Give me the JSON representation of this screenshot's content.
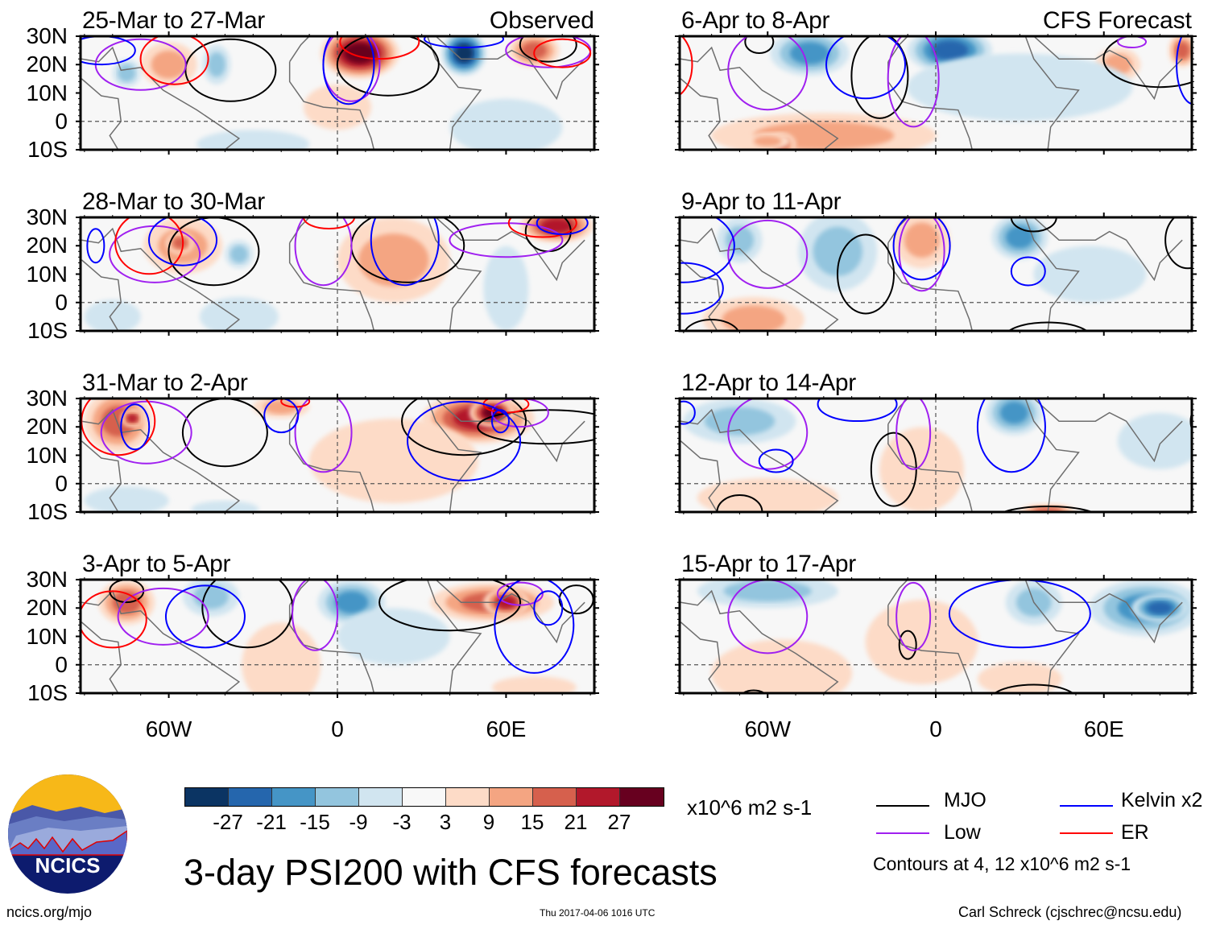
{
  "figure": {
    "main_title": "3-day PSI200 with CFS forecasts",
    "footer_left": "ncics.org/mjo",
    "footer_center": "Thu 2017-04-06 1016 UTC",
    "footer_right": "Carl Schreck (cjschrec@ncsu.edu)",
    "logo_text": "NCICS"
  },
  "axes": {
    "lat_labels": [
      "30N",
      "20N",
      "10N",
      "0",
      "10S"
    ],
    "lon_labels": [
      "60W",
      "0",
      "60E"
    ]
  },
  "colorbar": {
    "units": "x10^6 m2 s-1",
    "ticks": [
      "-27",
      "-21",
      "-15",
      "-9",
      "-3",
      "3",
      "9",
      "15",
      "21",
      "27"
    ],
    "colors": [
      "#0b3463",
      "#2566ad",
      "#4595c6",
      "#93c5de",
      "#d1e5f0",
      "#f8f8f8",
      "#fddbc7",
      "#f4a582",
      "#d6604d",
      "#b2182b",
      "#67001f"
    ]
  },
  "legend": {
    "items": [
      {
        "label": "MJO",
        "color": "#000000"
      },
      {
        "label": "Kelvin x2",
        "color": "#0000ff"
      },
      {
        "label": "Low",
        "color": "#a020f0"
      },
      {
        "label": "ER",
        "color": "#ff0000"
      }
    ],
    "note": "Contours at 4, 12 x10^6 m2 s-1"
  },
  "panels": [
    {
      "id": "p1",
      "title": "25-Mar to 27-Mar",
      "tag": "Observed",
      "blobs": [
        [
          -60,
          20,
          10,
          8,
          9
        ],
        [
          -43,
          20,
          5,
          7,
          -9
        ],
        [
          8,
          24,
          14,
          9,
          27
        ],
        [
          45,
          24,
          8,
          8,
          -27
        ],
        [
          70,
          25,
          9,
          6,
          15
        ],
        [
          -75,
          17,
          5,
          5,
          -9
        ],
        [
          0,
          5,
          12,
          8,
          3
        ],
        [
          -30,
          -8,
          20,
          5,
          -3
        ],
        [
          60,
          -2,
          20,
          10,
          -3
        ]
      ],
      "contours": [
        [
          "mjo",
          -38,
          18,
          16,
          11
        ],
        [
          "mjo",
          18,
          20,
          18,
          11
        ],
        [
          "mjo",
          75,
          27,
          10,
          6
        ],
        [
          "low",
          -70,
          20,
          16,
          9
        ],
        [
          "low",
          5,
          20,
          10,
          13
        ],
        [
          "low",
          75,
          25,
          15,
          6
        ],
        [
          "er",
          -58,
          22,
          12,
          9
        ],
        [
          "er",
          15,
          28,
          14,
          6
        ],
        [
          "er",
          80,
          24,
          10,
          5
        ],
        [
          "kelvin",
          -84,
          25,
          12,
          5
        ],
        [
          "kelvin",
          4,
          20,
          9,
          14
        ],
        [
          "kelvin",
          45,
          29,
          14,
          3
        ]
      ]
    },
    {
      "id": "p2",
      "title": "6-Apr to 8-Apr",
      "tag": "CFS Forecast",
      "blobs": [
        [
          -45,
          24,
          14,
          8,
          -15
        ],
        [
          5,
          25,
          15,
          8,
          -21
        ],
        [
          -40,
          -5,
          40,
          8,
          9
        ],
        [
          -55,
          -8,
          5,
          4,
          15
        ],
        [
          65,
          20,
          8,
          6,
          9
        ],
        [
          88,
          25,
          5,
          6,
          15
        ],
        [
          30,
          12,
          40,
          12,
          -3
        ],
        [
          -60,
          -7,
          8,
          3,
          9
        ]
      ],
      "contours": [
        [
          "mjo",
          -63,
          28,
          5,
          4
        ],
        [
          "mjo",
          -20,
          16,
          10,
          15
        ],
        [
          "mjo",
          80,
          22,
          20,
          10
        ],
        [
          "low",
          -60,
          18,
          14,
          14
        ],
        [
          "low",
          -8,
          15,
          9,
          17
        ],
        [
          "low",
          70,
          28,
          5,
          2
        ],
        [
          "er",
          -95,
          20,
          8,
          12
        ],
        [
          "kelvin",
          -25,
          20,
          14,
          12
        ],
        [
          "kelvin",
          92,
          20,
          6,
          14
        ]
      ]
    },
    {
      "id": "p3",
      "title": "28-Mar to 30-Mar",
      "tag": "",
      "blobs": [
        [
          -55,
          20,
          14,
          10,
          9
        ],
        [
          -56,
          21,
          5,
          4,
          15
        ],
        [
          -35,
          17,
          5,
          5,
          -9
        ],
        [
          20,
          15,
          20,
          15,
          9
        ],
        [
          78,
          27,
          13,
          6,
          21
        ],
        [
          60,
          5,
          8,
          15,
          -3
        ],
        [
          -35,
          -5,
          14,
          7,
          -3
        ],
        [
          -80,
          -5,
          10,
          6,
          -3
        ]
      ],
      "contours": [
        [
          "mjo",
          -44,
          18,
          16,
          12
        ],
        [
          "mjo",
          25,
          20,
          20,
          13
        ],
        [
          "mjo",
          75,
          25,
          8,
          7
        ],
        [
          "low",
          -65,
          17,
          16,
          10
        ],
        [
          "low",
          -5,
          20,
          10,
          14
        ],
        [
          "low",
          60,
          22,
          20,
          6
        ],
        [
          "er",
          -67,
          21,
          12,
          11
        ],
        [
          "er",
          -3,
          30,
          9,
          4
        ],
        [
          "er",
          73,
          28,
          12,
          5
        ],
        [
          "kelvin",
          -55,
          22,
          12,
          9
        ],
        [
          "kelvin",
          24,
          22,
          12,
          16
        ],
        [
          "kelvin",
          80,
          28,
          9,
          4
        ],
        [
          "kelvin",
          -86,
          20,
          3,
          6
        ]
      ]
    },
    {
      "id": "p4",
      "title": "9-Apr to 11-Apr",
      "tag": "",
      "blobs": [
        [
          -35,
          20,
          11,
          10,
          -27
        ],
        [
          -35,
          18,
          14,
          14,
          -9
        ],
        [
          -5,
          22,
          10,
          10,
          9
        ],
        [
          30,
          23,
          10,
          8,
          -15
        ],
        [
          -65,
          -6,
          18,
          8,
          9
        ],
        [
          -70,
          22,
          8,
          8,
          -9
        ],
        [
          55,
          10,
          20,
          10,
          -3
        ]
      ],
      "contours": [
        [
          "mjo",
          -25,
          10,
          10,
          14
        ],
        [
          "mjo",
          35,
          30,
          8,
          5
        ],
        [
          "mjo",
          90,
          22,
          8,
          10
        ],
        [
          "mjo",
          40,
          -12,
          15,
          5
        ],
        [
          "mjo",
          -80,
          -12,
          10,
          6
        ],
        [
          "low",
          -60,
          17,
          14,
          12
        ],
        [
          "low",
          -5,
          18,
          8,
          14
        ],
        [
          "kelvin",
          -5,
          20,
          10,
          12
        ],
        [
          "kelvin",
          33,
          11,
          6,
          5
        ],
        [
          "kelvin",
          -90,
          20,
          18,
          13
        ],
        [
          "kelvin",
          -90,
          5,
          14,
          9
        ]
      ]
    },
    {
      "id": "p5",
      "title": "31-Mar to 2-Apr",
      "tag": "",
      "blobs": [
        [
          -78,
          22,
          12,
          11,
          15
        ],
        [
          -73,
          23,
          4,
          3,
          21
        ],
        [
          50,
          23,
          20,
          9,
          21
        ],
        [
          55,
          25,
          8,
          5,
          27
        ],
        [
          -20,
          27,
          10,
          4,
          9
        ],
        [
          20,
          8,
          30,
          15,
          3
        ],
        [
          -75,
          -6,
          15,
          5,
          -3
        ],
        [
          -40,
          -9,
          12,
          3,
          -3
        ]
      ],
      "contours": [
        [
          "mjo",
          -40,
          18,
          15,
          12
        ],
        [
          "mjo",
          45,
          22,
          22,
          12
        ],
        [
          "mjo",
          75,
          20,
          25,
          6
        ],
        [
          "low",
          -68,
          18,
          16,
          11
        ],
        [
          "low",
          -5,
          18,
          10,
          14
        ],
        [
          "low",
          65,
          25,
          10,
          5
        ],
        [
          "er",
          -78,
          22,
          13,
          12
        ],
        [
          "er",
          -15,
          29,
          5,
          2
        ],
        [
          "er",
          60,
          28,
          8,
          3
        ],
        [
          "kelvin",
          -72,
          20,
          5,
          8
        ],
        [
          "kelvin",
          -20,
          24,
          6,
          6
        ],
        [
          "kelvin",
          45,
          15,
          20,
          14
        ],
        [
          "kelvin",
          58,
          22,
          3,
          4
        ]
      ]
    },
    {
      "id": "p6",
      "title": "12-Apr to 14-Apr",
      "tag": "",
      "blobs": [
        [
          -70,
          22,
          20,
          8,
          -9
        ],
        [
          28,
          25,
          10,
          8,
          -15
        ],
        [
          -60,
          -5,
          25,
          7,
          3
        ],
        [
          -5,
          5,
          15,
          15,
          3
        ],
        [
          80,
          15,
          15,
          10,
          -3
        ],
        [
          40,
          -10,
          10,
          3,
          15
        ]
      ],
      "contours": [
        [
          "mjo",
          -15,
          5,
          8,
          13
        ],
        [
          "mjo",
          -70,
          -10,
          8,
          6
        ],
        [
          "mjo",
          40,
          -12,
          18,
          4
        ],
        [
          "mjo",
          95,
          22,
          4,
          6
        ],
        [
          "low",
          -60,
          18,
          14,
          13
        ],
        [
          "low",
          -8,
          18,
          6,
          13
        ],
        [
          "kelvin",
          -57,
          8,
          6,
          4
        ],
        [
          "kelvin",
          -28,
          28,
          14,
          6
        ],
        [
          "kelvin",
          27,
          20,
          12,
          16
        ],
        [
          "kelvin",
          -90,
          25,
          4,
          4
        ]
      ]
    },
    {
      "id": "p7",
      "title": "3-Apr to 5-Apr",
      "tag": "",
      "blobs": [
        [
          -75,
          22,
          10,
          8,
          15
        ],
        [
          -45,
          24,
          10,
          7,
          -9
        ],
        [
          5,
          22,
          12,
          8,
          -15
        ],
        [
          55,
          22,
          22,
          7,
          15
        ],
        [
          60,
          22,
          8,
          5,
          21
        ],
        [
          -20,
          0,
          14,
          15,
          3
        ],
        [
          20,
          10,
          20,
          10,
          -3
        ],
        [
          70,
          -8,
          15,
          4,
          3
        ]
      ],
      "contours": [
        [
          "mjo",
          -75,
          26,
          6,
          4
        ],
        [
          "mjo",
          -32,
          20,
          16,
          14
        ],
        [
          "mjo",
          40,
          22,
          25,
          10
        ],
        [
          "mjo",
          85,
          23,
          6,
          5
        ],
        [
          "low",
          -62,
          17,
          16,
          10
        ],
        [
          "low",
          -8,
          18,
          8,
          13
        ],
        [
          "low",
          65,
          25,
          8,
          4
        ],
        [
          "er",
          -80,
          16,
          12,
          10
        ],
        [
          "kelvin",
          -47,
          17,
          14,
          11
        ],
        [
          "kelvin",
          70,
          14,
          14,
          17
        ],
        [
          "kelvin",
          75,
          20,
          5,
          6
        ]
      ]
    },
    {
      "id": "p8",
      "title": "15-Apr to 17-Apr",
      "tag": "",
      "blobs": [
        [
          -60,
          26,
          25,
          6,
          -9
        ],
        [
          35,
          22,
          10,
          8,
          -9
        ],
        [
          75,
          20,
          20,
          10,
          -15
        ],
        [
          80,
          20,
          10,
          5,
          -21
        ],
        [
          -55,
          -3,
          25,
          12,
          3
        ],
        [
          -5,
          8,
          20,
          15,
          3
        ],
        [
          30,
          -5,
          15,
          6,
          3
        ]
      ],
      "contours": [
        [
          "mjo",
          -10,
          7,
          3,
          5
        ],
        [
          "mjo",
          35,
          -12,
          15,
          5
        ],
        [
          "mjo",
          -65,
          -12,
          5,
          3
        ],
        [
          "low",
          -60,
          17,
          14,
          13
        ],
        [
          "low",
          -8,
          17,
          6,
          12
        ],
        [
          "kelvin",
          30,
          18,
          25,
          12
        ]
      ]
    }
  ]
}
